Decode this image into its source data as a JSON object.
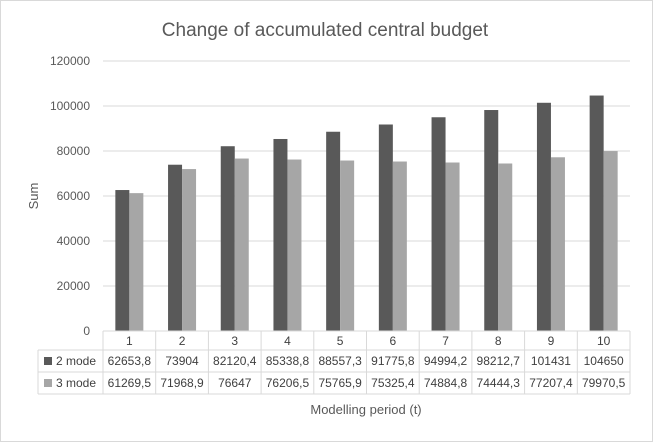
{
  "chart_data": {
    "type": "bar",
    "title": "Change of accumulated central budget",
    "xlabel": "Modelling period (t)",
    "ylabel": "Sum",
    "ylim": [
      0,
      120000
    ],
    "yticks": [
      "0",
      "20000",
      "40000",
      "60000",
      "80000",
      "100000",
      "120000"
    ],
    "grid": true,
    "legend": "data-table",
    "categories": [
      "1",
      "2",
      "3",
      "4",
      "5",
      "6",
      "7",
      "8",
      "9",
      "10"
    ],
    "series": [
      {
        "name": "2 mode",
        "color": "#595959",
        "values": [
          62653.8,
          73904,
          82120.4,
          85338.8,
          88557.3,
          91775.8,
          94994.2,
          98212.7,
          101431,
          104650
        ],
        "labels": [
          "62653,8",
          "73904",
          "82120,4",
          "85338,8",
          "88557,3",
          "91775,8",
          "94994,2",
          "98212,7",
          "101431",
          "104650"
        ]
      },
      {
        "name": "3 mode",
        "color": "#a6a6a6",
        "values": [
          61269.5,
          71968.9,
          76647,
          76206.5,
          75765.9,
          75325.4,
          74884.8,
          74444.3,
          77207.4,
          79970.5
        ],
        "labels": [
          "61269,5",
          "71968,9",
          "76647",
          "76206,5",
          "75765,9",
          "75325,4",
          "74884,8",
          "74444,3",
          "77207,4",
          "79970,5"
        ]
      }
    ]
  }
}
